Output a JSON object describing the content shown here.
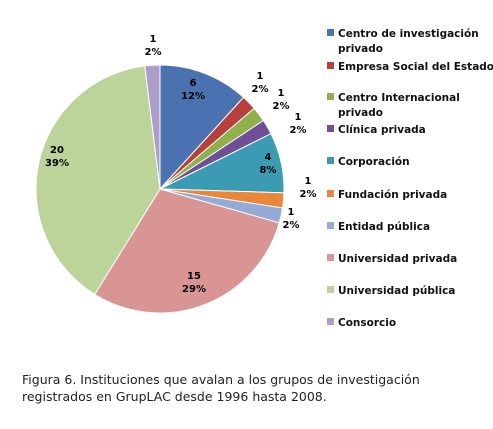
{
  "chart_data": {
    "type": "pie",
    "title": "",
    "categories": [
      "Centro de investigación privado",
      "Empresa Social del Estado",
      "Centro Internacional privado",
      "Clínica privada",
      "Corporación",
      "Fundación privada",
      "Entidad pública",
      "Universidad privada",
      "Universidad pública",
      "Consorcio"
    ],
    "legend_lines": [
      [
        "Centro de investigación",
        "privado"
      ],
      [
        "Empresa Social del Estado"
      ],
      [
        "Centro Internacional",
        "privado"
      ],
      [
        "Clínica privada"
      ],
      [
        "Corporación"
      ],
      [
        "Fundación privada"
      ],
      [
        "Entidad pública"
      ],
      [
        "Universidad privada"
      ],
      [
        "Universidad pública"
      ],
      [
        "Consorcio"
      ]
    ],
    "values": [
      6,
      1,
      1,
      1,
      4,
      1,
      1,
      15,
      20,
      1
    ],
    "percent_labels": [
      "12%",
      "2%",
      "2%",
      "2%",
      "8%",
      "2%",
      "2%",
      "29%",
      "39%",
      "2%"
    ],
    "colors": [
      "#4a72b0",
      "#b8403c",
      "#8fb04a",
      "#6e4f98",
      "#3b9bb3",
      "#e8873a",
      "#93abd6",
      "#d99594",
      "#bcd49a",
      "#ad9ec7"
    ],
    "legend_position": "right"
  },
  "caption": {
    "line1": "Figura 6. Instituciones que avalan a los grupos de investigación",
    "line2": "registrados en GrupLAC desde 1996 hasta 2008."
  }
}
